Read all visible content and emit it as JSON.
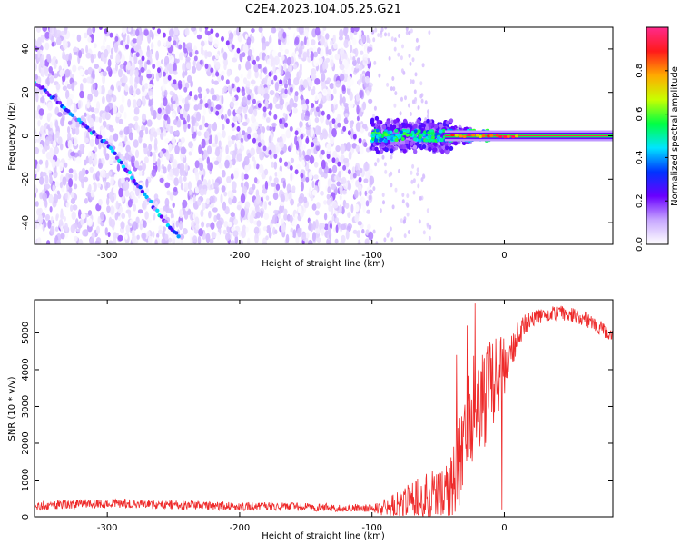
{
  "figure": {
    "title": "C2E4.2023.104.05.25.G21"
  },
  "chart_data": [
    {
      "type": "heatmap",
      "xlabel": "Height of straight line (km)",
      "ylabel": "Frequency (Hz)",
      "xlim": [
        -355,
        82
      ],
      "ylim": [
        -50,
        50
      ],
      "x_ticks": [
        -300,
        -200,
        -100,
        0
      ],
      "y_ticks": [
        -40,
        -20,
        0,
        20,
        40
      ],
      "colorbar": {
        "label": "Normalized spectral amplitude",
        "range": [
          0.0,
          1.0
        ],
        "ticks": [
          "0.0",
          "0.2",
          "0.4",
          "0.6",
          "0.8"
        ],
        "colormap": [
          "#ffffff",
          "#c8a8ff",
          "#6a00ff",
          "#0033ff",
          "#00e5ff",
          "#00ff44",
          "#c8ff00",
          "#ffaa00",
          "#ff1a1a",
          "#ff2a8c"
        ]
      },
      "features": [
        {
          "name": "direct signal line",
          "x_range": [
            -100,
            82
          ],
          "frequency": 0,
          "amplitude_range": [
            0.35,
            0.95
          ]
        },
        {
          "name": "diagonal reflection",
          "points": [
            [
              -355,
              25
            ],
            [
              -320,
              6
            ],
            [
              -300,
              -4
            ],
            [
              -280,
              -20
            ],
            [
              -260,
              -37
            ],
            [
              -245,
              -47
            ]
          ]
        },
        {
          "name": "noise region",
          "x_range": [
            -355,
            -100
          ],
          "amplitude": 0.15
        }
      ]
    },
    {
      "type": "line",
      "xlabel": "Height of straight line (km)",
      "ylabel": "SNR (10 * v/v)",
      "xlim": [
        -355,
        82
      ],
      "ylim": [
        0,
        5900
      ],
      "x_ticks": [
        -300,
        -200,
        -100,
        0
      ],
      "y_ticks": [
        0,
        1000,
        2000,
        3000,
        4000,
        5000
      ],
      "color": "#ee2a2a",
      "envelope": {
        "x": [
          -355,
          -320,
          -290,
          -260,
          -220,
          -180,
          -140,
          -110,
          -95,
          -85,
          -75,
          -65,
          -55,
          -45,
          -40,
          -35,
          -30,
          -25,
          -20,
          -15,
          -10,
          -5,
          0,
          5,
          10,
          15,
          20,
          30,
          40,
          50,
          60,
          70,
          82
        ],
        "y": [
          300,
          350,
          360,
          330,
          300,
          280,
          260,
          240,
          230,
          260,
          350,
          450,
          550,
          600,
          700,
          1300,
          2100,
          2800,
          3200,
          3300,
          3400,
          3600,
          4000,
          4500,
          4900,
          5200,
          5350,
          5500,
          5550,
          5500,
          5400,
          5200,
          4900
        ]
      },
      "spread": {
        "x": [
          -355,
          -100,
          -95,
          -80,
          -60,
          -45,
          -35,
          -20,
          -5,
          5,
          20,
          82
        ],
        "y": [
          130,
          110,
          150,
          450,
          650,
          850,
          1300,
          1500,
          1300,
          500,
          200,
          200
        ]
      },
      "spikes": [
        {
          "x": -22,
          "y": 5800
        },
        {
          "x": -28,
          "y": 5200
        },
        {
          "x": -36,
          "y": 4400
        },
        {
          "x": -2,
          "y": 200
        }
      ]
    }
  ]
}
